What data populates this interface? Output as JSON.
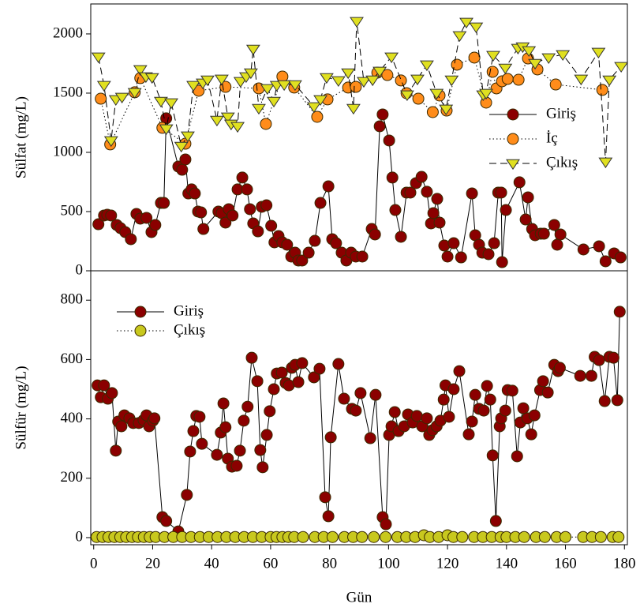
{
  "chart_data": [
    {
      "type": "line",
      "ylabel": "Sülfat (mg/L)",
      "xlim": [
        -1,
        181
      ],
      "ylim": [
        0,
        2253
      ],
      "yticks": [
        0,
        500,
        1000,
        1500,
        2000
      ],
      "legend": "center right",
      "series": [
        {
          "name": "Giriş",
          "color": "#8b0000",
          "linestyle": "solid",
          "marker": "circle",
          "x": [
            1.6,
            3.5,
            4.6,
            5.9,
            7.8,
            9.1,
            10.7,
            12.6,
            14.5,
            15.8,
            17.9,
            19.6,
            20.9,
            22.8,
            23.8,
            24.6,
            28.7,
            30,
            31.1,
            32.1,
            33.2,
            34.3,
            35.4,
            36.4,
            37.2,
            42.3,
            43.4,
            44.7,
            45.8,
            47.1,
            48.8,
            50.4,
            52,
            53,
            54.1,
            55.7,
            57,
            58.6,
            60.2,
            61.3,
            62.7,
            64,
            65.6,
            67,
            68.3,
            69.4,
            70.7,
            72.9,
            75,
            76.9,
            79.6,
            80.9,
            82.2,
            84.1,
            85.7,
            87.3,
            88.9,
            91.1,
            94.3,
            95.4,
            97,
            98,
            100.2,
            101.3,
            102.3,
            104.2,
            106.1,
            107.4,
            109.3,
            111.2,
            113,
            114.4,
            115.2,
            116.5,
            117.3,
            118.9,
            120,
            122.1,
            124.6,
            128.3,
            129.4,
            130.7,
            131.8,
            133.9,
            135.8,
            137.2,
            138.2,
            138.5,
            139.8,
            144.4,
            146.5,
            147.3,
            148.7,
            149.7,
            151.6,
            152.7,
            156.2,
            157.2,
            158.3,
            166.1,
            171.4,
            173.6,
            176.5,
            178.7
          ],
          "values": [
            393,
            467,
            473,
            467,
            387,
            360,
            327,
            267,
            480,
            440,
            447,
            327,
            387,
            573,
            573,
            1287,
            880,
            853,
            940,
            653,
            687,
            653,
            500,
            493,
            353,
            500,
            487,
            407,
            520,
            467,
            687,
            787,
            687,
            520,
            400,
            333,
            540,
            553,
            380,
            240,
            293,
            240,
            220,
            120,
            153,
            87,
            87,
            153,
            253,
            573,
            713,
            267,
            233,
            153,
            87,
            153,
            120,
            120,
            353,
            307,
            1220,
            1320,
            1100,
            787,
            513,
            287,
            660,
            660,
            740,
            793,
            667,
            400,
            487,
            607,
            407,
            213,
            120,
            233,
            113,
            653,
            300,
            220,
            153,
            140,
            233,
            660,
            660,
            73,
            513,
            747,
            433,
            620,
            353,
            300,
            313,
            313,
            387,
            220,
            307,
            180,
            207,
            80,
            147,
            113
          ]
        },
        {
          "name": "İç",
          "color": "#ff8c1a",
          "linestyle": "dotted",
          "marker": "circle",
          "x": [
            2.4,
            5.6,
            13.9,
            15.8,
            23.3,
            31.1,
            35.6,
            44.7,
            56,
            58.4,
            64,
            68,
            75.8,
            79.3,
            86.3,
            88.9,
            96.2,
            99.6,
            104.2,
            106.1,
            110.1,
            115,
            117.3,
            119.7,
            123.2,
            129.1,
            133.1,
            135.3,
            136.6,
            138.5,
            140.4,
            144.1,
            147.3,
            150.5,
            156.7,
            172.5
          ],
          "values": [
            1453,
            1067,
            1507,
            1627,
            1207,
            1073,
            1520,
            1553,
            1540,
            1240,
            1640,
            1547,
            1300,
            1447,
            1547,
            1553,
            1673,
            1653,
            1607,
            1500,
            1453,
            1340,
            1480,
            1353,
            1740,
            1800,
            1420,
            1680,
            1540,
            1600,
            1620,
            1613,
            1793,
            1700,
            1573,
            1527
          ]
        },
        {
          "name": "Çıkış",
          "color": "#e0e020",
          "linestyle": "dashed",
          "marker": "triangle",
          "x": [
            1.6,
            3.5,
            5.9,
            7.5,
            9.6,
            13.9,
            15.8,
            17.7,
            19.8,
            22.8,
            24.6,
            26.3,
            29.7,
            31.9,
            33.8,
            37,
            38.6,
            41.8,
            43.4,
            45.5,
            46.6,
            48.8,
            49.8,
            51.7,
            53.3,
            54.1,
            56,
            58.9,
            61.1,
            62.1,
            64.6,
            68.3,
            74.7,
            76.9,
            79,
            83,
            86.3,
            88.1,
            89.2,
            91.6,
            94.6,
            97,
            101,
            106.3,
            109.8,
            113,
            116.3,
            119.5,
            121.4,
            124.1,
            126.4,
            129.7,
            132.1,
            133.1,
            135.5,
            139.6,
            143.9,
            145.5,
            147.6,
            149.7,
            154.3,
            159.1,
            165.3,
            171.2,
            173.6,
            174.9,
            178.9
          ],
          "values": [
            1807,
            1567,
            1100,
            1447,
            1467,
            1507,
            1700,
            1640,
            1633,
            1433,
            1200,
            1420,
            1053,
            1140,
            1567,
            1587,
            1613,
            1273,
            1620,
            1300,
            1240,
            1220,
            1600,
            1640,
            1673,
            1873,
            1373,
            1540,
            1433,
            1567,
            1573,
            1573,
            1387,
            1447,
            1633,
            1607,
            1673,
            1373,
            2107,
            1600,
            1613,
            1687,
            1807,
            1487,
            1620,
            1740,
            1500,
            1367,
            1613,
            1987,
            2100,
            2060,
            1487,
            1500,
            1820,
            1713,
            1880,
            1893,
            1860,
            1753,
            1800,
            1827,
            1620,
            1847,
            920,
            1613,
            1727
          ]
        }
      ]
    },
    {
      "type": "line",
      "ylabel": "Sülfür (mg/L)",
      "xlabel": "Gün",
      "xlim": [
        -1,
        181
      ],
      "ylim": [
        -24,
        899
      ],
      "yticks": [
        0,
        200,
        400,
        600,
        800
      ],
      "xticks": [
        0,
        20,
        40,
        60,
        80,
        100,
        120,
        140,
        160,
        180
      ],
      "legend": "upper left",
      "series": [
        {
          "name": "Giriş",
          "color": "#8b0000",
          "linestyle": "solid",
          "marker": "circle",
          "x": [
            1.3,
            2.4,
            3.5,
            4.8,
            6.2,
            7.5,
            8.3,
            9.4,
            10.4,
            12.1,
            13.4,
            15.3,
            16.9,
            17.9,
            18.8,
            20.1,
            20.6,
            23.3,
            24.6,
            28.7,
            31.6,
            32.7,
            33.8,
            34.8,
            35.9,
            36.7,
            41.8,
            43.1,
            44,
            44.7,
            45.5,
            46.9,
            48.5,
            49.6,
            50.9,
            52.2,
            53.6,
            55.5,
            56.5,
            57.3,
            58.7,
            59.7,
            61.1,
            62.1,
            63.8,
            65.1,
            66.2,
            67.2,
            68.3,
            69.4,
            70.7,
            74.7,
            76.6,
            78.5,
            79.6,
            80.4,
            83,
            84.9,
            87.6,
            88.9,
            90.5,
            93.8,
            95.6,
            98,
            99.1,
            100.2,
            101,
            102.1,
            103.4,
            105.3,
            106.6,
            108.2,
            109.6,
            111.4,
            113,
            113.8,
            114.9,
            116.3,
            117.6,
            118.7,
            119.3,
            120.5,
            122.1,
            124,
            127.2,
            128.3,
            129.4,
            130.7,
            132.3,
            133.4,
            134.5,
            135.3,
            136.4,
            137.7,
            138.2,
            139.6,
            140.4,
            142,
            143.6,
            144.7,
            145.7,
            147.1,
            148.4,
            149.5,
            151.4,
            152.4,
            154,
            156.2,
            157.5,
            158.1,
            165,
            168.8,
            169.9,
            171.4,
            173.3,
            174.9,
            176.3,
            177.6,
            178.4
          ],
          "values": [
            513,
            473,
            513,
            468,
            487,
            293,
            391,
            375,
            412,
            402,
            386,
            386,
            396,
            412,
            375,
            394,
            402,
            69,
            56,
            21,
            144,
            290,
            359,
            410,
            407,
            316,
            279,
            354,
            452,
            372,
            266,
            239,
            242,
            293,
            394,
            441,
            606,
            527,
            295,
            237,
            346,
            426,
            500,
            553,
            556,
            521,
            513,
            572,
            582,
            524,
            588,
            540,
            569,
            136,
            72,
            338,
            585,
            468,
            434,
            428,
            487,
            335,
            481,
            69,
            45,
            346,
            375,
            423,
            359,
            375,
            415,
            388,
            410,
            375,
            402,
            346,
            362,
            375,
            394,
            465,
            513,
            407,
            500,
            561,
            348,
            391,
            481,
            434,
            428,
            511,
            465,
            277,
            56,
            375,
            402,
            428,
            497,
            495,
            274,
            388,
            436,
            402,
            348,
            412,
            497,
            527,
            489,
            582,
            561,
            572,
            545,
            545,
            609,
            598,
            460,
            609,
            606,
            463,
            761
          ]
        },
        {
          "name": "Çıkış",
          "color": "#c8c81e",
          "linestyle": "dotted",
          "marker": "circle",
          "x": [
            1,
            3,
            5,
            7,
            9,
            11,
            13,
            15,
            17,
            19,
            21,
            24,
            27,
            30,
            33,
            36,
            39,
            42,
            45,
            48,
            51,
            54,
            57,
            60,
            62,
            64,
            66,
            68,
            71,
            75,
            78,
            81,
            85,
            88,
            91,
            95,
            99,
            103,
            106,
            109,
            112,
            114,
            117,
            120,
            122,
            125,
            129,
            132,
            135,
            138,
            140,
            143,
            146,
            150,
            153,
            157,
            160,
            166,
            169,
            172,
            176,
            178
          ],
          "values": [
            2,
            2,
            2,
            2,
            2,
            2,
            2,
            2,
            2,
            2,
            2,
            2,
            2,
            2,
            2,
            2,
            2,
            2,
            2,
            2,
            2,
            2,
            2,
            2,
            2,
            2,
            2,
            2,
            2,
            2,
            2,
            2,
            2,
            2,
            2,
            2,
            2,
            2,
            2,
            2,
            8,
            2,
            2,
            8,
            2,
            2,
            2,
            2,
            2,
            2,
            2,
            2,
            2,
            2,
            2,
            2,
            2,
            2,
            2,
            2,
            2,
            2
          ]
        }
      ]
    }
  ]
}
